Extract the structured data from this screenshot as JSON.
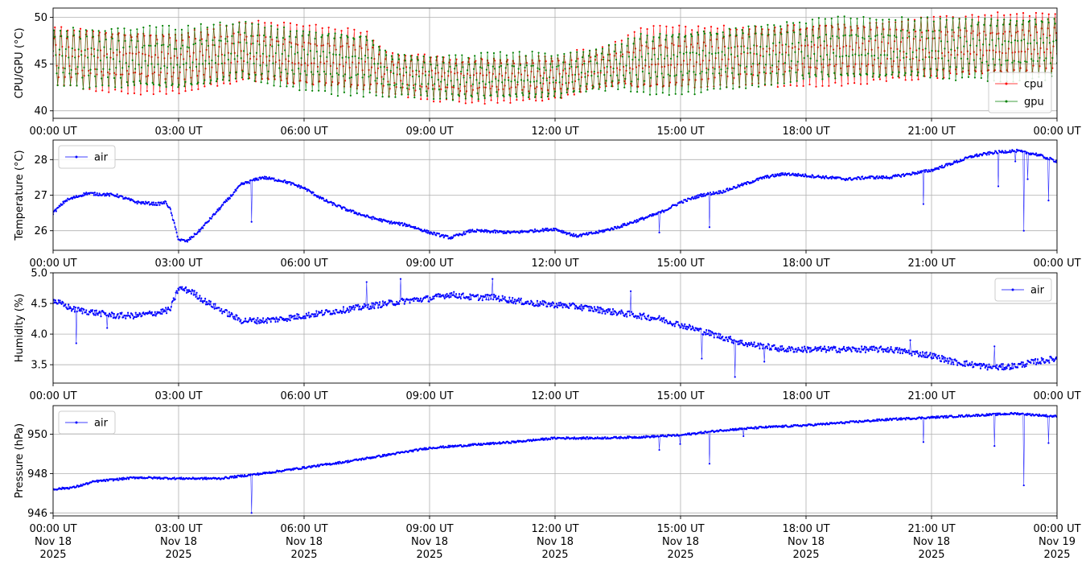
{
  "chart_data": [
    {
      "type": "line",
      "ylabel": "CPU/GPU (°C)",
      "ylim": [
        39.2,
        51.0
      ],
      "yticks": [
        40,
        45,
        50
      ],
      "xticks": [
        "00:00 UT",
        "03:00 UT",
        "06:00 UT",
        "09:00 UT",
        "12:00 UT",
        "15:00 UT",
        "18:00 UT",
        "21:00 UT",
        "00:00 UT"
      ],
      "xrange_hours": [
        0,
        24
      ],
      "legend": "bottom-right",
      "grid": true,
      "series": [
        {
          "name": "cpu",
          "color": "#ff0000",
          "style": "oscillating",
          "center": [
            [
              0,
              45.8
            ],
            [
              2,
              45.5
            ],
            [
              3,
              45.3
            ],
            [
              4.5,
              46.3
            ],
            [
              6,
              45.6
            ],
            [
              7.5,
              45.2
            ],
            [
              8,
              44.0
            ],
            [
              9.5,
              43.5
            ],
            [
              12,
              43.6
            ],
            [
              14,
              45.2
            ],
            [
              18,
              46.3
            ],
            [
              21,
              46.6
            ],
            [
              24,
              47.0
            ]
          ],
          "amplitude": [
            [
              0,
              3.6
            ],
            [
              7.5,
              3.6
            ],
            [
              8,
              2.6
            ],
            [
              13.5,
              2.6
            ],
            [
              14,
              3.6
            ],
            [
              24,
              3.6
            ]
          ],
          "noise": 0.25
        },
        {
          "name": "gpu",
          "color": "#008000",
          "style": "oscillating",
          "center": [
            [
              0,
              45.8
            ],
            [
              2,
              45.5
            ],
            [
              3,
              45.3
            ],
            [
              4.5,
              46.3
            ],
            [
              6,
              45.6
            ],
            [
              7.5,
              45.2
            ],
            [
              8,
              44.0
            ],
            [
              9.5,
              43.5
            ],
            [
              12,
              43.6
            ],
            [
              14,
              45.2
            ],
            [
              18,
              46.3
            ],
            [
              21,
              46.6
            ],
            [
              24,
              47.0
            ]
          ],
          "amplitude": [
            [
              0,
              3.6
            ],
            [
              7.5,
              3.6
            ],
            [
              8,
              2.6
            ],
            [
              13.5,
              2.6
            ],
            [
              14,
              3.6
            ],
            [
              24,
              3.6
            ]
          ],
          "noise": 0.25
        }
      ]
    },
    {
      "type": "line",
      "ylabel": "Temperature (°C)",
      "ylim": [
        25.45,
        28.55
      ],
      "yticks": [
        26,
        27,
        28
      ],
      "xticks": [
        "00:00 UT",
        "03:00 UT",
        "06:00 UT",
        "09:00 UT",
        "12:00 UT",
        "15:00 UT",
        "18:00 UT",
        "21:00 UT",
        "00:00 UT"
      ],
      "xrange_hours": [
        0,
        24
      ],
      "legend": "top-left",
      "grid": true,
      "series": [
        {
          "name": "air",
          "color": "#0000ff",
          "noise": 0.04,
          "points": [
            [
              0,
              26.5
            ],
            [
              0.3,
              26.85
            ],
            [
              0.8,
              27.05
            ],
            [
              1.5,
              27.0
            ],
            [
              2.0,
              26.8
            ],
            [
              2.5,
              26.75
            ],
            [
              2.7,
              26.8
            ],
            [
              2.8,
              26.6
            ],
            [
              3.0,
              25.75
            ],
            [
              3.2,
              25.7
            ],
            [
              3.5,
              26.0
            ],
            [
              4.0,
              26.65
            ],
            [
              4.5,
              27.3
            ],
            [
              5.0,
              27.5
            ],
            [
              5.5,
              27.4
            ],
            [
              6.0,
              27.2
            ],
            [
              6.5,
              26.85
            ],
            [
              7.0,
              26.6
            ],
            [
              7.5,
              26.4
            ],
            [
              8.0,
              26.25
            ],
            [
              8.5,
              26.15
            ],
            [
              9.0,
              25.95
            ],
            [
              9.5,
              25.8
            ],
            [
              10.0,
              26.0
            ],
            [
              11.0,
              25.95
            ],
            [
              11.5,
              26.0
            ],
            [
              12.0,
              26.05
            ],
            [
              12.5,
              25.85
            ],
            [
              13.0,
              25.95
            ],
            [
              13.5,
              26.1
            ],
            [
              14.0,
              26.3
            ],
            [
              14.5,
              26.5
            ],
            [
              15.0,
              26.8
            ],
            [
              15.5,
              27.0
            ],
            [
              16.0,
              27.1
            ],
            [
              16.5,
              27.3
            ],
            [
              17.0,
              27.5
            ],
            [
              17.5,
              27.6
            ],
            [
              18.0,
              27.55
            ],
            [
              18.5,
              27.5
            ],
            [
              19.0,
              27.45
            ],
            [
              19.5,
              27.5
            ],
            [
              20.0,
              27.5
            ],
            [
              20.5,
              27.6
            ],
            [
              21.0,
              27.7
            ],
            [
              21.5,
              27.9
            ],
            [
              22.0,
              28.1
            ],
            [
              22.5,
              28.2
            ],
            [
              23.0,
              28.25
            ],
            [
              23.5,
              28.15
            ],
            [
              24.0,
              27.95
            ]
          ],
          "spikes": [
            [
              4.75,
              26.25
            ],
            [
              14.5,
              25.95
            ],
            [
              15.7,
              26.1
            ],
            [
              20.8,
              26.75
            ],
            [
              22.6,
              27.25
            ],
            [
              23.0,
              27.95
            ],
            [
              23.2,
              26.0
            ],
            [
              23.3,
              27.45
            ],
            [
              23.8,
              26.85
            ]
          ]
        }
      ]
    },
    {
      "type": "line",
      "ylabel": "Humidity (%)",
      "ylim": [
        3.2,
        5.0
      ],
      "yticks": [
        3.5,
        4.0,
        4.5,
        5.0
      ],
      "xticks": [
        "00:00 UT",
        "03:00 UT",
        "06:00 UT",
        "09:00 UT",
        "12:00 UT",
        "15:00 UT",
        "18:00 UT",
        "21:00 UT",
        "00:00 UT"
      ],
      "xrange_hours": [
        0,
        24
      ],
      "legend": "top-right",
      "grid": true,
      "series": [
        {
          "name": "air",
          "color": "#0000ff",
          "noise": 0.05,
          "points": [
            [
              0,
              4.55
            ],
            [
              0.5,
              4.4
            ],
            [
              1.0,
              4.35
            ],
            [
              1.5,
              4.3
            ],
            [
              2.0,
              4.3
            ],
            [
              2.5,
              4.35
            ],
            [
              2.8,
              4.4
            ],
            [
              3.0,
              4.75
            ],
            [
              3.3,
              4.7
            ],
            [
              3.6,
              4.55
            ],
            [
              4.0,
              4.4
            ],
            [
              4.5,
              4.22
            ],
            [
              5.0,
              4.22
            ],
            [
              5.5,
              4.25
            ],
            [
              6.0,
              4.3
            ],
            [
              6.5,
              4.35
            ],
            [
              7.0,
              4.4
            ],
            [
              7.5,
              4.45
            ],
            [
              8.0,
              4.5
            ],
            [
              8.5,
              4.55
            ],
            [
              9.0,
              4.58
            ],
            [
              9.5,
              4.65
            ],
            [
              10.0,
              4.6
            ],
            [
              10.5,
              4.6
            ],
            [
              11.0,
              4.55
            ],
            [
              11.5,
              4.5
            ],
            [
              12.0,
              4.48
            ],
            [
              12.5,
              4.45
            ],
            [
              13.0,
              4.4
            ],
            [
              13.5,
              4.35
            ],
            [
              14.0,
              4.3
            ],
            [
              14.5,
              4.25
            ],
            [
              15.0,
              4.15
            ],
            [
              15.5,
              4.05
            ],
            [
              16.0,
              3.95
            ],
            [
              16.5,
              3.85
            ],
            [
              17.0,
              3.8
            ],
            [
              17.5,
              3.75
            ],
            [
              18.0,
              3.75
            ],
            [
              18.5,
              3.75
            ],
            [
              19.0,
              3.75
            ],
            [
              19.5,
              3.75
            ],
            [
              20.0,
              3.75
            ],
            [
              20.5,
              3.7
            ],
            [
              21.0,
              3.65
            ],
            [
              21.5,
              3.55
            ],
            [
              22.0,
              3.5
            ],
            [
              22.5,
              3.45
            ],
            [
              23.0,
              3.48
            ],
            [
              23.5,
              3.55
            ],
            [
              24.0,
              3.6
            ]
          ],
          "spikes": [
            [
              0.55,
              3.85
            ],
            [
              1.3,
              4.1
            ],
            [
              7.5,
              4.85
            ],
            [
              8.3,
              4.9
            ],
            [
              10.5,
              4.9
            ],
            [
              13.8,
              4.7
            ],
            [
              15.5,
              3.6
            ],
            [
              16.3,
              3.3
            ],
            [
              17.0,
              3.55
            ],
            [
              20.5,
              3.9
            ],
            [
              22.5,
              3.8
            ]
          ]
        }
      ]
    },
    {
      "type": "line",
      "ylabel": "Pressure (hPa)",
      "ylim": [
        945.85,
        951.45
      ],
      "yticks": [
        946,
        948,
        950
      ],
      "xticks": [
        [
          "00:00 UT",
          "Nov 18",
          "2025"
        ],
        [
          "03:00 UT",
          "Nov 18",
          "2025"
        ],
        [
          "06:00 UT",
          "Nov 18",
          "2025"
        ],
        [
          "09:00 UT",
          "Nov 18",
          "2025"
        ],
        [
          "12:00 UT",
          "Nov 18",
          "2025"
        ],
        [
          "15:00 UT",
          "Nov 18",
          "2025"
        ],
        [
          "18:00 UT",
          "Nov 18",
          "2025"
        ],
        [
          "21:00 UT",
          "Nov 18",
          "2025"
        ],
        [
          "00:00 UT",
          "Nov 19",
          "2025"
        ]
      ],
      "xrange_hours": [
        0,
        24
      ],
      "legend": "top-left",
      "grid": true,
      "series": [
        {
          "name": "air",
          "color": "#0000ff",
          "noise": 0.05,
          "points": [
            [
              0,
              947.2
            ],
            [
              0.5,
              947.3
            ],
            [
              1.0,
              947.6
            ],
            [
              2.0,
              947.8
            ],
            [
              3.0,
              947.75
            ],
            [
              4.0,
              947.75
            ],
            [
              5.0,
              948.0
            ],
            [
              6.0,
              948.3
            ],
            [
              7.0,
              948.6
            ],
            [
              8.0,
              948.95
            ],
            [
              9.0,
              949.3
            ],
            [
              10.0,
              949.45
            ],
            [
              11.0,
              949.6
            ],
            [
              12.0,
              949.8
            ],
            [
              13.0,
              949.8
            ],
            [
              14.0,
              949.85
            ],
            [
              15.0,
              949.95
            ],
            [
              16.0,
              950.2
            ],
            [
              17.0,
              950.35
            ],
            [
              18.0,
              950.45
            ],
            [
              19.0,
              950.6
            ],
            [
              20.0,
              950.75
            ],
            [
              21.0,
              950.85
            ],
            [
              22.0,
              950.95
            ],
            [
              23.0,
              951.05
            ],
            [
              24.0,
              950.9
            ]
          ],
          "spikes": [
            [
              4.75,
              946.0
            ],
            [
              14.5,
              949.2
            ],
            [
              15.0,
              949.5
            ],
            [
              15.7,
              948.5
            ],
            [
              16.5,
              949.9
            ],
            [
              20.8,
              949.6
            ],
            [
              22.5,
              949.4
            ],
            [
              23.2,
              947.4
            ],
            [
              23.8,
              949.55
            ]
          ]
        }
      ]
    }
  ]
}
